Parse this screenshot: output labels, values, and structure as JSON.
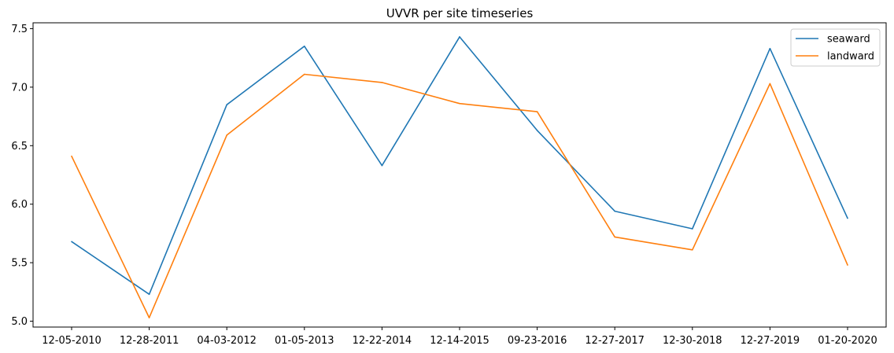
{
  "chart_data": {
    "type": "line",
    "title": "UVVR per site timeseries",
    "xlabel": "",
    "ylabel": "",
    "categories": [
      "12-05-2010",
      "12-28-2011",
      "04-03-2012",
      "01-05-2013",
      "12-22-2014",
      "12-14-2015",
      "09-23-2016",
      "12-27-2017",
      "12-30-2018",
      "12-27-2019",
      "01-20-2020"
    ],
    "yticks": [
      "5.0",
      "5.5",
      "6.0",
      "6.5",
      "7.0",
      "7.5"
    ],
    "ylim": [
      4.95,
      7.55
    ],
    "grid": false,
    "legend_position": "top-right",
    "series": [
      {
        "name": "seaward",
        "color": "#1f77b4",
        "values": [
          5.68,
          5.23,
          6.85,
          7.35,
          6.33,
          7.43,
          6.63,
          5.94,
          5.79,
          7.33,
          5.88
        ]
      },
      {
        "name": "landward",
        "color": "#ff7f0e",
        "values": [
          6.41,
          5.03,
          6.59,
          7.11,
          7.04,
          6.86,
          6.79,
          5.72,
          5.61,
          7.03,
          5.48
        ]
      }
    ]
  }
}
